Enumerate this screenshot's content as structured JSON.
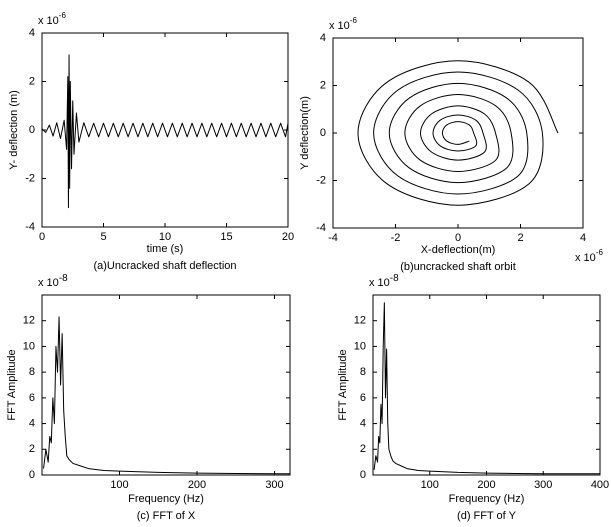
{
  "chart_data": [
    {
      "type": "line",
      "caption": "(a)Uncracked shaft deflection",
      "xlabel": "time (s)",
      "ylabel": "Y- deflection (m)",
      "y_multiplier": {
        "base": "x 10",
        "exponent": "-6"
      },
      "xlim": [
        0,
        20
      ],
      "ylim": [
        -4,
        4
      ],
      "xticks": [
        0,
        5,
        10,
        15,
        20
      ],
      "yticks": [
        -4,
        -2,
        0,
        2,
        4
      ],
      "color": "#000000",
      "x": [
        0,
        0.3,
        0.6,
        0.9,
        1.2,
        1.5,
        1.8,
        2.0,
        2.1,
        2.15,
        2.2,
        2.25,
        2.3,
        2.4,
        2.5,
        2.6,
        2.8,
        3.0,
        3.4,
        3.8,
        4.2,
        4.6,
        5.0,
        5.4,
        5.8,
        6.2,
        6.6,
        7.0,
        7.4,
        7.8,
        8.2,
        8.6,
        9.0,
        9.4,
        9.8,
        10.2,
        10.6,
        11.0,
        11.4,
        11.8,
        12.2,
        12.6,
        13.0,
        13.4,
        13.8,
        14.2,
        14.6,
        15.0,
        15.4,
        15.8,
        16.2,
        16.6,
        17.0,
        17.4,
        17.8,
        18.2,
        18.6,
        19.0,
        19.4,
        19.8,
        20
      ],
      "values": [
        0.05,
        -0.1,
        0.2,
        -0.25,
        0.3,
        -0.35,
        0.4,
        -0.8,
        2.2,
        -3.2,
        3.1,
        -2.4,
        2.0,
        -1.6,
        1.2,
        -1.0,
        0.7,
        -0.5,
        0.3,
        -0.28,
        0.28,
        -0.28,
        0.28,
        -0.28,
        0.28,
        -0.28,
        0.28,
        -0.28,
        0.28,
        -0.28,
        0.28,
        -0.28,
        0.28,
        -0.28,
        0.28,
        -0.28,
        0.28,
        -0.28,
        0.28,
        -0.28,
        0.28,
        -0.28,
        0.28,
        -0.28,
        0.28,
        -0.28,
        0.28,
        -0.28,
        0.28,
        -0.28,
        0.28,
        -0.28,
        0.28,
        -0.28,
        0.28,
        -0.28,
        0.28,
        -0.28,
        0.28,
        -0.28,
        0.28
      ]
    },
    {
      "type": "orbit",
      "caption": "(b)uncracked shaft orbit",
      "xlabel": "X-deflection(m)",
      "ylabel": "Y deflection(m)",
      "y_multiplier": {
        "base": "x 10",
        "exponent": "-6"
      },
      "x_multiplier": {
        "base": "x 10",
        "exponent": "-6"
      },
      "xlim": [
        -4,
        4
      ],
      "ylim": [
        -4,
        4
      ],
      "xticks": [
        -4,
        -2,
        0,
        2,
        4
      ],
      "yticks": [
        -4,
        -2,
        0,
        2,
        4
      ],
      "color": "#000000",
      "x": [
        3.2,
        2.27,
        0,
        -2.27,
        -3.2,
        -2.27,
        0,
        2.27,
        2.7,
        1.92,
        0,
        -1.92,
        -2.7,
        -1.92,
        0,
        1.92,
        2.2,
        1.56,
        0,
        -1.56,
        -2.2,
        -1.56,
        0,
        1.56,
        1.7,
        1.21,
        0,
        -1.21,
        -1.7,
        -1.21,
        0,
        1.21,
        1.2,
        0.85,
        0,
        -0.85,
        -1.2,
        -0.85,
        0,
        0.85,
        0.8,
        0.57,
        0,
        -0.57,
        -0.8,
        -0.57,
        0,
        0.57,
        0.5,
        0.36,
        0,
        -0.36,
        -0.5,
        -0.36,
        0,
        0.36
      ],
      "values": [
        0,
        2.14,
        3.04,
        2.14,
        0,
        -2.14,
        -3.04,
        -2.14,
        0,
        1.81,
        2.57,
        1.81,
        0,
        -1.81,
        -2.57,
        -1.81,
        0,
        1.47,
        2.09,
        1.47,
        0,
        -1.47,
        -2.09,
        -1.47,
        0,
        1.14,
        1.62,
        1.14,
        0,
        -1.14,
        -1.62,
        -1.14,
        0,
        0.8,
        1.14,
        0.8,
        0,
        -0.8,
        -1.14,
        -0.8,
        0,
        0.54,
        0.76,
        0.54,
        0,
        -0.54,
        -0.76,
        -0.54,
        0,
        0.34,
        0.48,
        0.34,
        0,
        -0.34,
        -0.48,
        -0.34
      ]
    },
    {
      "type": "line",
      "caption": "(c) FFT of X",
      "xlabel": "Frequency (Hz)",
      "ylabel": "FFT Amplitude",
      "y_multiplier": {
        "base": "x 10",
        "exponent": "-8"
      },
      "xlim": [
        0,
        320
      ],
      "ylim": [
        0,
        14
      ],
      "xticks": [
        100,
        200,
        300
      ],
      "yticks": [
        0,
        2,
        4,
        6,
        8,
        10,
        12
      ],
      "color": "#000000",
      "x": [
        2,
        5,
        8,
        10,
        12,
        14,
        16,
        18,
        20,
        22,
        24,
        26,
        28,
        30,
        32,
        35,
        40,
        50,
        60,
        80,
        100,
        150,
        200,
        250,
        300,
        320
      ],
      "values": [
        0.5,
        2,
        1,
        3,
        2.5,
        6,
        4,
        10,
        8,
        12.3,
        7,
        11,
        5,
        3,
        1.5,
        1.2,
        0.9,
        0.7,
        0.5,
        0.35,
        0.3,
        0.2,
        0.15,
        0.12,
        0.1,
        0.1
      ]
    },
    {
      "type": "line",
      "caption": "(d) FFT of Y",
      "xlabel": "Frequency (Hz)",
      "ylabel": "FFT Amplitude",
      "y_multiplier": {
        "base": "x 10",
        "exponent": "-8"
      },
      "xlim": [
        0,
        400
      ],
      "ylim": [
        0,
        14
      ],
      "xticks": [
        100,
        200,
        300,
        400
      ],
      "yticks": [
        0,
        2,
        4,
        6,
        8,
        10,
        12
      ],
      "color": "#000000",
      "x": [
        2,
        5,
        8,
        10,
        12,
        14,
        16,
        18,
        20,
        22,
        24,
        26,
        28,
        32,
        35,
        40,
        50,
        60,
        80,
        100,
        150,
        200,
        250,
        300,
        350,
        400
      ],
      "values": [
        0.4,
        1.5,
        1,
        3,
        2.5,
        5.5,
        4,
        10,
        13.4,
        6,
        9.8,
        4,
        2,
        1.4,
        1.1,
        0.9,
        0.7,
        0.5,
        0.35,
        0.3,
        0.2,
        0.15,
        0.12,
        0.1,
        0.1,
        0.1
      ]
    }
  ]
}
